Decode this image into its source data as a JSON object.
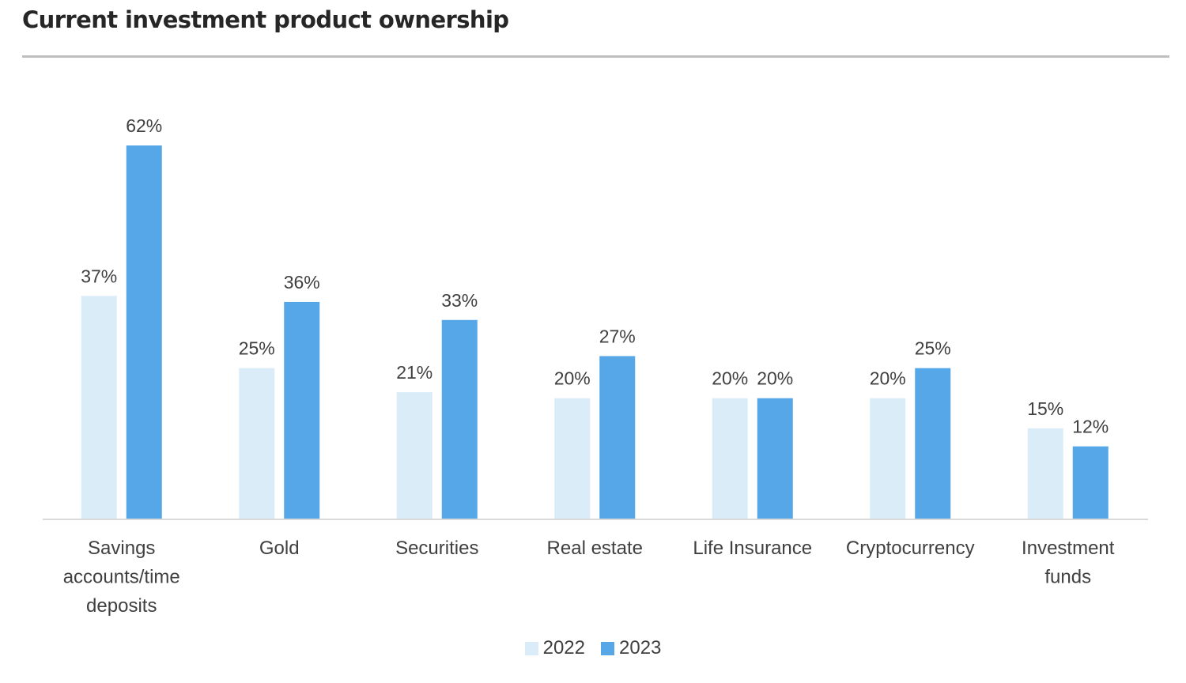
{
  "chart_data": {
    "type": "bar",
    "title": "Current investment product ownership",
    "categories": [
      "Savings accounts/time deposits",
      "Gold",
      "Securities",
      "Real estate",
      "Life Insurance",
      "Cryptocurrency",
      "Investment funds"
    ],
    "category_lines": [
      [
        "Savings",
        "accounts/time",
        "deposits"
      ],
      [
        "Gold"
      ],
      [
        "Securities"
      ],
      [
        "Real estate"
      ],
      [
        "Life Insurance"
      ],
      [
        "Cryptocurrency"
      ],
      [
        "Investment",
        "funds"
      ]
    ],
    "series": [
      {
        "name": "2022",
        "color": "#dbecf9",
        "values": [
          37,
          25,
          21,
          20,
          20,
          20,
          15
        ],
        "labels": [
          "37%",
          "25%",
          "21%",
          "20%",
          "20%",
          "20%",
          "15%"
        ]
      },
      {
        "name": "2023",
        "color": "#55a7e8",
        "values": [
          62,
          36,
          33,
          27,
          20,
          25,
          12
        ],
        "labels": [
          "62%",
          "36%",
          "33%",
          "27%",
          "20%",
          "25%",
          "12%"
        ]
      }
    ],
    "ylim": [
      0,
      62
    ],
    "grid": false,
    "legend_position": "bottom-center",
    "xlabel": "",
    "ylabel": ""
  }
}
